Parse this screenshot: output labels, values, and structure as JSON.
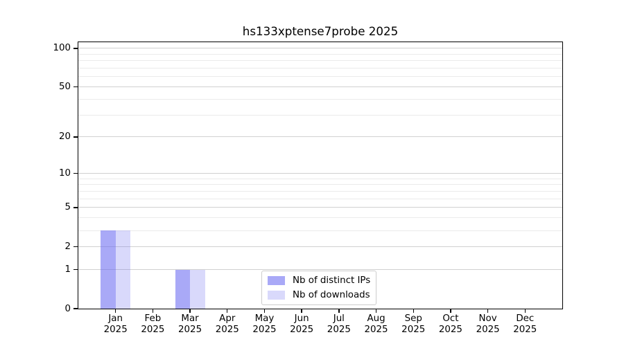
{
  "title": "hs133xptense7probe 2025",
  "chart_data": {
    "type": "bar",
    "title": "hs133xptense7probe 2025",
    "x_tick_months": [
      "Jan",
      "Feb",
      "Mar",
      "Apr",
      "May",
      "Jun",
      "Jul",
      "Aug",
      "Sep",
      "Oct",
      "Nov",
      "Dec"
    ],
    "x_tick_year": "2025",
    "categories": [
      "Jan 2025",
      "Feb 2025",
      "Mar 2025",
      "Apr 2025",
      "May 2025",
      "Jun 2025",
      "Jul 2025",
      "Aug 2025",
      "Sep 2025",
      "Oct 2025",
      "Nov 2025",
      "Dec 2025"
    ],
    "series": [
      {
        "name": "Nb of distinct IPs",
        "color": "rgba(102,102,240,0.56)",
        "values": [
          3,
          0,
          1,
          0,
          0,
          0,
          0,
          0,
          0,
          0,
          0,
          0
        ]
      },
      {
        "name": "Nb of downloads",
        "color": "rgba(102,102,240,0.25)",
        "values": [
          3,
          0,
          1,
          0,
          0,
          0,
          0,
          0,
          0,
          0,
          0,
          0
        ]
      }
    ],
    "yscale": "log1p",
    "ylim": [
      0,
      112
    ],
    "y_major_ticks": [
      0,
      1,
      2,
      5,
      10,
      20,
      50,
      100
    ],
    "y_minor_gridlines": [
      3,
      4,
      6,
      7,
      8,
      9,
      30,
      40,
      60,
      70,
      80,
      90
    ],
    "grid": "on",
    "legend_position": "lower center",
    "xlabel": "",
    "ylabel": "",
    "colors": {
      "major_grid": "#d0d0d0",
      "minor_grid": "#ebebeb",
      "axis": "#000000",
      "background": "#ffffff",
      "legend_border": "#cccccc"
    }
  }
}
